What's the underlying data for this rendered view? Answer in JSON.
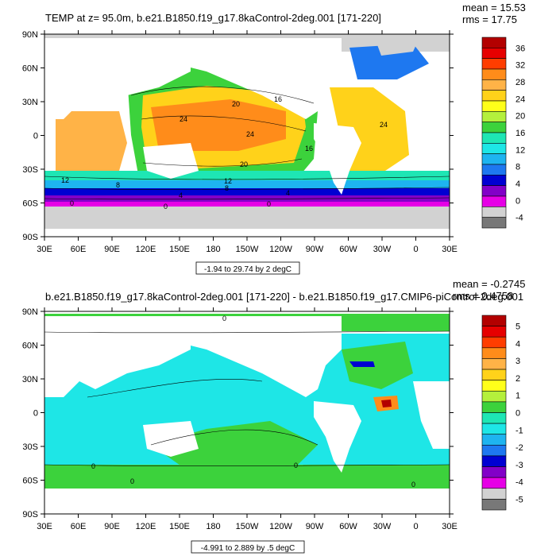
{
  "panels": [
    {
      "title": "TEMP at z=  95.0m, b.e21.B1850.f19_g17.8kaControl-2deg.001 [171-220]",
      "stats": [
        "mean = 15.53",
        "rms = 17.75"
      ],
      "range_label": "-1.94 to 29.74 by 2 degC",
      "lat_labels": [
        "90N",
        "60N",
        "30N",
        "0",
        "30S",
        "60S",
        "90S"
      ],
      "lon_labels": [
        "30E",
        "60E",
        "90E",
        "120E",
        "150E",
        "180",
        "150W",
        "120W",
        "90W",
        "60W",
        "30W",
        "0",
        "30E"
      ],
      "contour_labels": [
        "20",
        "24",
        "24",
        "20",
        "16",
        "12",
        "8",
        "12",
        "8",
        "4",
        "0",
        "0",
        "0",
        "24",
        "16",
        "4"
      ],
      "colorbar": {
        "labels": [
          "36",
          "32",
          "28",
          "24",
          "20",
          "16",
          "12",
          "8",
          "4",
          "0",
          "-4"
        ],
        "colors": [
          "#b30000",
          "#e60000",
          "#ff3d00",
          "#ff8c1a",
          "#ffb347",
          "#ffd21a",
          "#ffff1a",
          "#b4f03c",
          "#3cd23c",
          "#1ee6b4",
          "#1ee6e6",
          "#1eb4f0",
          "#1e78f0",
          "#0000d2",
          "#8200c8",
          "#e600e6",
          "#d2d2d2",
          "#787878"
        ]
      }
    },
    {
      "title": "b.e21.B1850.f19_g17.8kaControl-2deg.001 [171-220] - b.e21.B1850.f19_g17.CMIP6-piControl-2deg.001",
      "stats": [
        "mean = -0.2745",
        "rms = 0.4758"
      ],
      "range_label": "-4.991 to 2.889 by .5 degC",
      "lat_labels": [
        "90N",
        "60N",
        "30N",
        "0",
        "30S",
        "60S",
        "90S"
      ],
      "lon_labels": [
        "30E",
        "60E",
        "90E",
        "120E",
        "150E",
        "180",
        "150W",
        "120W",
        "90W",
        "60W",
        "30W",
        "0",
        "30E"
      ],
      "contour_labels": [
        "0",
        "0",
        "0",
        "0",
        "0"
      ],
      "colorbar": {
        "labels": [
          "5",
          "4",
          "3",
          "2",
          "1",
          "0",
          "-1",
          "-2",
          "-3",
          "-4",
          "-5"
        ],
        "colors": [
          "#b30000",
          "#e60000",
          "#ff3d00",
          "#ff8c1a",
          "#ffb347",
          "#ffd21a",
          "#ffff1a",
          "#b4f03c",
          "#3cd23c",
          "#1ee6b4",
          "#1ee6e6",
          "#1eb4f0",
          "#1e78f0",
          "#0000d2",
          "#8200c8",
          "#e600e6",
          "#d2d2d2",
          "#787878"
        ]
      }
    }
  ]
}
